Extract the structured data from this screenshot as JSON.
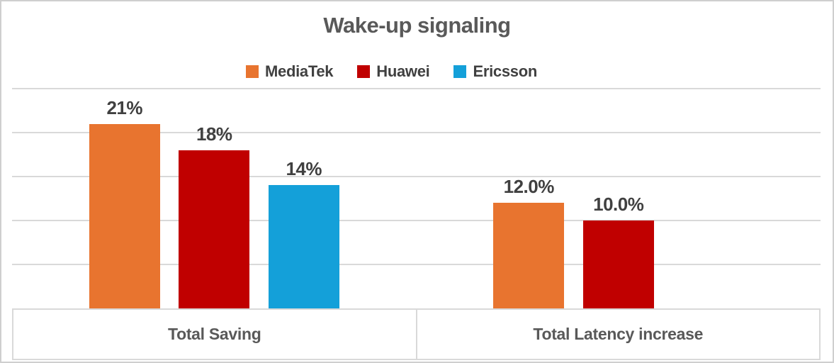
{
  "chart_data": {
    "type": "bar",
    "title": "Wake-up signaling",
    "categories": [
      "Total Saving",
      "Total Latency increase"
    ],
    "series": [
      {
        "name": "MediaTek",
        "color": "#E8742F",
        "values": [
          21,
          12
        ],
        "labels": [
          "21%",
          "12.0%"
        ]
      },
      {
        "name": "Huawei",
        "color": "#C00000",
        "values": [
          18,
          10
        ],
        "labels": [
          "18%",
          "10.0%"
        ]
      },
      {
        "name": "Ericsson",
        "color": "#14A0D9",
        "values": [
          14,
          null
        ],
        "labels": [
          "14%",
          null
        ]
      }
    ],
    "ylim": [
      0,
      25
    ],
    "gridline_step": 5,
    "grid": true,
    "legend_position": "top-center",
    "y_axis_labels_visible": false,
    "xlabel": "",
    "ylabel": ""
  },
  "colors": {
    "gridline": "#D9D9D9",
    "outer_border": "#CFCFCF",
    "title_text": "#595959",
    "data_label_text": "#404040",
    "category_text": "#595959",
    "background": "#FFFFFF"
  }
}
